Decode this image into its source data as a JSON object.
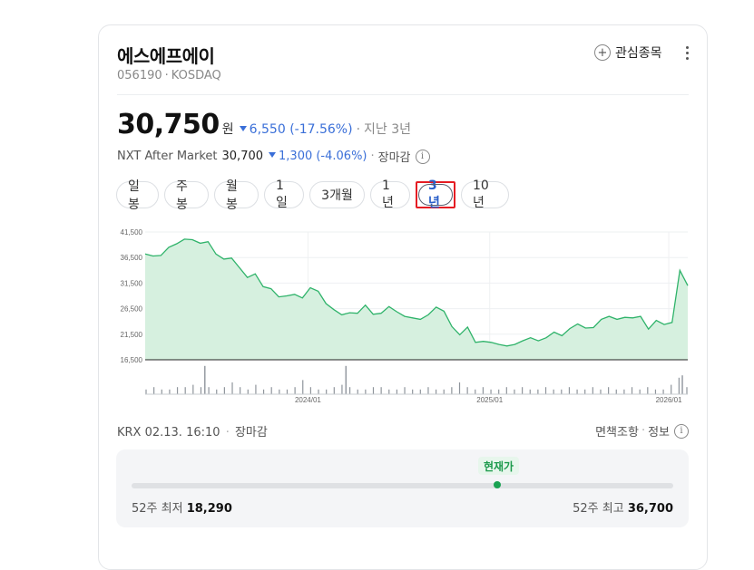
{
  "stock": {
    "name": "에스에프에이",
    "code": "056190",
    "market": "KOSDAQ",
    "watch_label": "관심종목"
  },
  "price": {
    "value": "30,750",
    "unit": "원",
    "change": "6,550 (-17.56%)",
    "period": "지난 3년"
  },
  "nxt": {
    "label": "NXT After Market",
    "value": "30,700",
    "change": "1,300 (-4.06%)",
    "status": "장마감"
  },
  "tabs": [
    {
      "label": "일봉"
    },
    {
      "label": "주봉"
    },
    {
      "label": "월봉"
    },
    {
      "label": "1일"
    },
    {
      "label": "3개월"
    },
    {
      "label": "1년"
    },
    {
      "label": "3년"
    },
    {
      "label": "10년"
    }
  ],
  "active_tab": "3년",
  "chart_data": {
    "type": "area",
    "y_ticks": [
      "41,500",
      "36,500",
      "31,500",
      "26,500",
      "21,500",
      "16,500"
    ],
    "ylim": [
      16500,
      41500
    ],
    "x_ticks": [
      "2024/01",
      "2025/01",
      "2026/01"
    ],
    "line_color": "#2fb36a",
    "fill_color": "#d6f0df",
    "values": [
      37200,
      36800,
      36900,
      38500,
      39200,
      40100,
      40000,
      39300,
      39600,
      37200,
      36200,
      36400,
      34500,
      32600,
      33300,
      30800,
      30400,
      28800,
      29000,
      29300,
      28600,
      30600,
      29900,
      27500,
      26300,
      25300,
      25700,
      25600,
      27200,
      25400,
      25600,
      26900,
      25900,
      25000,
      24700,
      24400,
      25300,
      26800,
      26000,
      23000,
      21400,
      22900,
      19900,
      20100,
      19900,
      19500,
      19200,
      19500,
      20200,
      20800,
      20200,
      20800,
      21900,
      21200,
      22600,
      23500,
      22700,
      22800,
      24400,
      25000,
      24400,
      24800,
      24700,
      25000,
      22500,
      24200,
      23400,
      23800,
      34000,
      31000
    ],
    "volumes": [
      2,
      3,
      2,
      2,
      3,
      3,
      4,
      3,
      3,
      2,
      3,
      5,
      3,
      2,
      4,
      2,
      3,
      2,
      2,
      3,
      6,
      3,
      2,
      2,
      3,
      4,
      3,
      2,
      2,
      3,
      3,
      2,
      2,
      3,
      2,
      2,
      3,
      2,
      2,
      3,
      5,
      3,
      2,
      3,
      2,
      2,
      3,
      2,
      3,
      2,
      2,
      3,
      2,
      2,
      3,
      2,
      2,
      3,
      2,
      3,
      2,
      2,
      3,
      2,
      3,
      2,
      2,
      4,
      7,
      3
    ],
    "volume_spikes": [
      {
        "at": 0.11,
        "v": 12
      },
      {
        "at": 0.37,
        "v": 12
      },
      {
        "at": 0.99,
        "v": 8
      }
    ]
  },
  "footer": {
    "exchange_info": "KRX 02.13. 16:10",
    "status": "장마감",
    "disclaimer": "면책조항",
    "info_label": "정보"
  },
  "range": {
    "current_label": "현재가",
    "low_label": "52주 최저",
    "low_value": "18,290",
    "high_label": "52주 최고",
    "high_value": "36,700",
    "current_fraction": 0.675
  }
}
